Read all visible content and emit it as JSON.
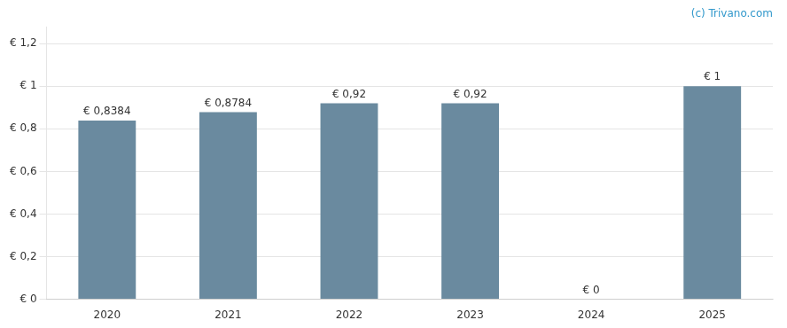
{
  "chart_data": {
    "type": "bar",
    "categories": [
      "2020",
      "2021",
      "2022",
      "2023",
      "2024",
      "2025"
    ],
    "values": [
      0.8384,
      0.8784,
      0.92,
      0.92,
      0.0,
      1.0
    ],
    "value_labels": [
      "€ 0,8384",
      "€ 0,8784",
      "€ 0,92",
      "€ 0,92",
      "€ 0",
      "€ 1"
    ],
    "data_labels": true,
    "color": "#6A8A9F",
    "ylim": [
      0,
      1.28
    ],
    "yticks": [
      {
        "value": 0,
        "label": "€ 0"
      },
      {
        "value": 0.2,
        "label": "€ 0,2"
      },
      {
        "value": 0.4,
        "label": "€ 0,4"
      },
      {
        "value": 0.6,
        "label": "€ 0,6"
      },
      {
        "value": 0.8,
        "label": "€ 0,8"
      },
      {
        "value": 1.0,
        "label": "€ 1"
      },
      {
        "value": 1.2,
        "label": "€ 1,2"
      }
    ],
    "grid": true,
    "annotations": [
      {
        "text": "(c) Trivano.com",
        "color": "#3399CC"
      }
    ]
  }
}
